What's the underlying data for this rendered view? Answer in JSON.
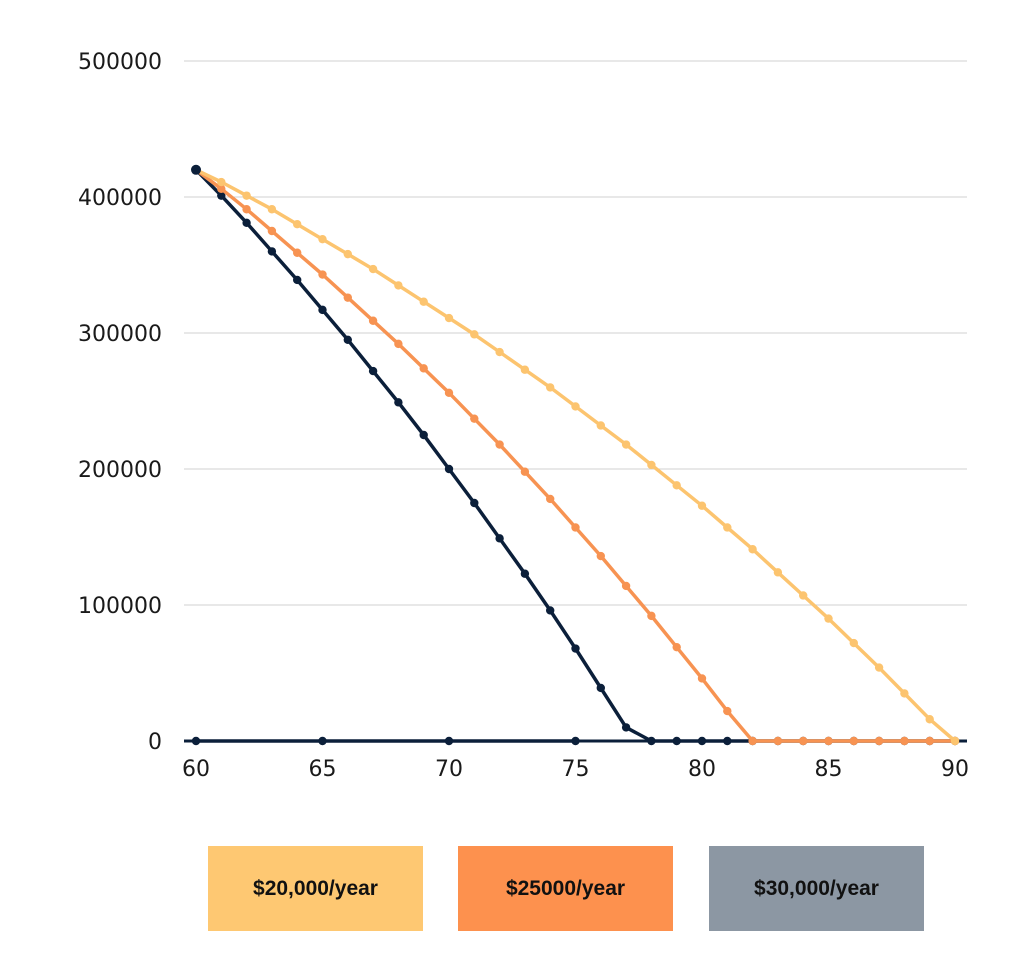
{
  "chart_data": {
    "type": "line",
    "title": "",
    "xlabel": "",
    "ylabel": "",
    "xlim": [
      60,
      90
    ],
    "ylim": [
      0,
      500000
    ],
    "x_ticks": [
      "60",
      "65",
      "70",
      "75",
      "80",
      "85",
      "90"
    ],
    "y_ticks": [
      "0",
      "100000",
      "200000",
      "300000",
      "400000",
      "500000"
    ],
    "grid": "horizontal",
    "legend_position": "bottom",
    "axis_color": "#0b1f3a",
    "grid_color": "#d0d0d0",
    "series": [
      {
        "name": "$20,000/year",
        "color": "#fcc46f",
        "legend_color": "#fec872",
        "x": [
          60,
          61,
          62,
          63,
          64,
          65,
          66,
          67,
          68,
          69,
          70,
          71,
          72,
          73,
          74,
          75,
          76,
          77,
          78,
          79,
          80,
          81,
          82,
          83,
          84,
          85,
          86,
          87,
          88,
          89,
          90
        ],
        "values": [
          420000,
          411000,
          401000,
          391000,
          380000,
          369000,
          358000,
          347000,
          335000,
          323000,
          311000,
          299000,
          286000,
          273000,
          260000,
          246000,
          232000,
          218000,
          203000,
          188000,
          173000,
          157000,
          141000,
          124000,
          107000,
          90000,
          72000,
          54000,
          35000,
          16000,
          0
        ]
      },
      {
        "name": "$25000/year",
        "color": "#f79352",
        "legend_color": "#fd914e",
        "x": [
          60,
          61,
          62,
          63,
          64,
          65,
          66,
          67,
          68,
          69,
          70,
          71,
          72,
          73,
          74,
          75,
          76,
          77,
          78,
          79,
          80,
          81,
          82,
          83,
          84,
          85,
          86,
          87,
          88,
          89,
          90
        ],
        "values": [
          420000,
          406000,
          391000,
          375000,
          359000,
          343000,
          326000,
          309000,
          292000,
          274000,
          256000,
          237000,
          218000,
          198000,
          178000,
          157000,
          136000,
          114000,
          92000,
          69000,
          46000,
          22000,
          0,
          0,
          0,
          0,
          0,
          0,
          0,
          0,
          0
        ]
      },
      {
        "name": "$30,000/year",
        "color": "#0b1f3a",
        "legend_color": "#8c97a3",
        "x": [
          60,
          61,
          62,
          63,
          64,
          65,
          66,
          67,
          68,
          69,
          70,
          71,
          72,
          73,
          74,
          75,
          76,
          77,
          78,
          79,
          80,
          81,
          82,
          83,
          84,
          85,
          86,
          87,
          88,
          89,
          90
        ],
        "values": [
          420000,
          401000,
          381000,
          360000,
          339000,
          317000,
          295000,
          272000,
          249000,
          225000,
          200000,
          175000,
          149000,
          123000,
          96000,
          68000,
          39000,
          10000,
          0,
          0,
          0,
          0,
          0,
          0,
          0,
          0,
          0,
          0,
          0,
          0,
          0
        ]
      },
      {
        "name": "",
        "color": "#0b1f3a",
        "x": [
          60,
          65,
          70,
          75
        ],
        "values": [
          0,
          0,
          0,
          0
        ]
      }
    ]
  }
}
